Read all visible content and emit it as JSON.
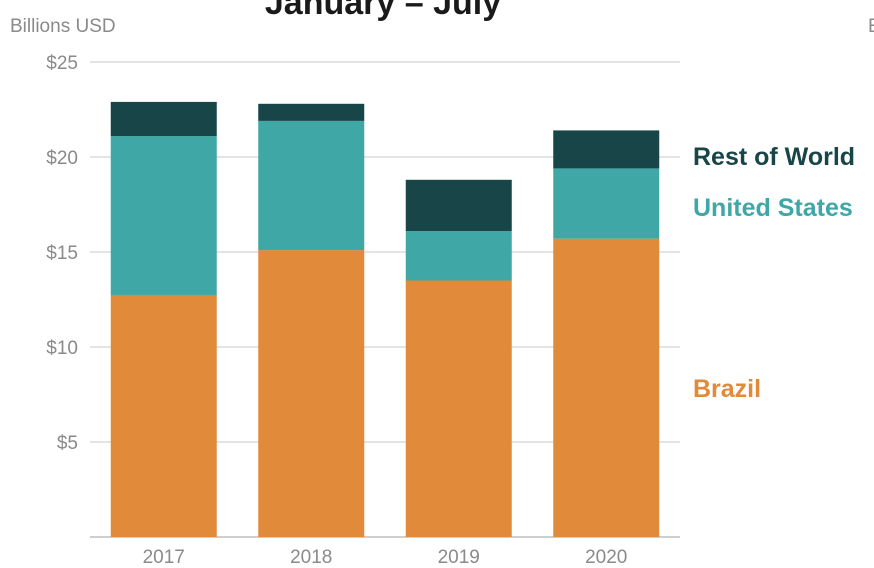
{
  "chart_data": {
    "type": "bar",
    "stacked": true,
    "title": "January – July",
    "ylabel": "Billions USD",
    "xlabel": "",
    "categories": [
      "2017",
      "2018",
      "2019",
      "2020"
    ],
    "ylim": [
      0,
      25
    ],
    "yticks": [
      5,
      10,
      15,
      20,
      25
    ],
    "ytick_labels": [
      "$5",
      "$10",
      "$15",
      "$20",
      "$25"
    ],
    "grid": true,
    "legend_position": "right",
    "series": [
      {
        "name": "Brazil",
        "color": "#e08a3a",
        "values": [
          12.7,
          15.1,
          13.5,
          15.7
        ]
      },
      {
        "name": "United States",
        "color": "#3fa7a5",
        "values": [
          8.4,
          6.8,
          2.6,
          3.7
        ]
      },
      {
        "name": "Rest of World",
        "color": "#174548",
        "values": [
          1.8,
          0.9,
          2.7,
          2.0
        ]
      }
    ],
    "edge_text": "E"
  }
}
